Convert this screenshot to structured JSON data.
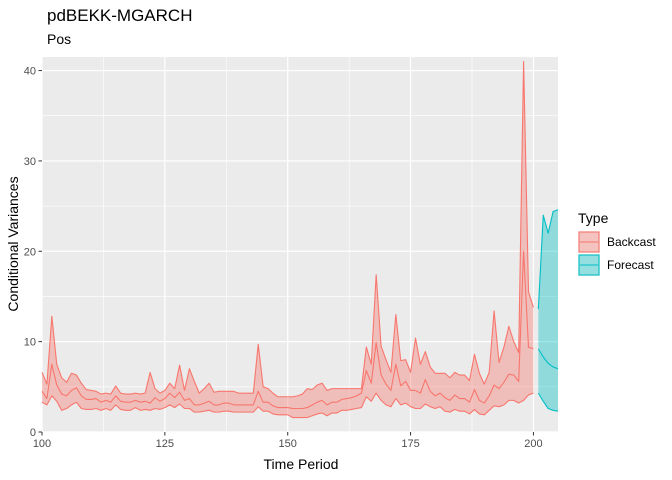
{
  "chart_data": {
    "type": "area",
    "title": "pdBEKK-MGARCH",
    "subtitle": "Pos",
    "xlabel": "Time Period",
    "ylabel": "Conditional Variances",
    "xlim": [
      100,
      205
    ],
    "ylim": [
      0,
      41.5
    ],
    "x_ticks": [
      100,
      125,
      150,
      175,
      200
    ],
    "y_ticks": [
      0,
      10,
      20,
      30,
      40
    ],
    "grid": true,
    "legend": {
      "title": "Type",
      "position": "right",
      "entries": [
        "Backcast",
        "Forecast"
      ]
    },
    "series": [
      {
        "name": "Backcast",
        "color": "#F8766D",
        "fill": "#F8766D",
        "x": [
          100,
          101,
          102,
          103,
          104,
          105,
          106,
          107,
          108,
          109,
          110,
          111,
          112,
          113,
          114,
          115,
          116,
          117,
          118,
          119,
          120,
          121,
          122,
          123,
          124,
          125,
          126,
          127,
          128,
          129,
          130,
          131,
          132,
          133,
          134,
          135,
          136,
          137,
          138,
          139,
          140,
          141,
          142,
          143,
          144,
          145,
          146,
          147,
          148,
          149,
          150,
          151,
          152,
          153,
          154,
          155,
          156,
          157,
          158,
          159,
          160,
          161,
          162,
          163,
          164,
          165,
          166,
          167,
          168,
          169,
          170,
          171,
          172,
          173,
          174,
          175,
          176,
          177,
          178,
          179,
          180,
          181,
          182,
          183,
          184,
          185,
          186,
          187,
          188,
          189,
          190,
          191,
          192,
          193,
          194,
          195,
          196,
          197,
          198,
          199,
          200
        ],
        "lower": [
          3.3,
          3.0,
          4.0,
          3.4,
          2.4,
          2.6,
          3.0,
          3.3,
          2.6,
          2.5,
          2.5,
          2.6,
          2.4,
          2.6,
          2.4,
          3.0,
          2.5,
          2.4,
          2.4,
          2.7,
          2.4,
          2.5,
          2.4,
          2.6,
          2.5,
          2.7,
          3.0,
          2.7,
          3.1,
          2.6,
          2.6,
          2.2,
          2.2,
          2.3,
          2.4,
          2.2,
          2.2,
          2.3,
          2.3,
          2.2,
          2.2,
          2.2,
          2.2,
          2.2,
          2.8,
          2.3,
          2.3,
          2.0,
          1.9,
          1.9,
          1.9,
          1.6,
          1.6,
          1.6,
          1.6,
          1.8,
          2.0,
          2.1,
          1.8,
          2.1,
          2.1,
          2.4,
          2.4,
          2.5,
          2.6,
          2.7,
          3.9,
          3.4,
          4.3,
          3.5,
          3.0,
          2.8,
          3.7,
          3.0,
          3.2,
          2.8,
          2.6,
          2.6,
          3.1,
          2.8,
          2.6,
          2.8,
          2.3,
          2.2,
          2.5,
          2.3,
          2.3,
          2.0,
          2.5,
          2.0,
          1.9,
          2.4,
          2.9,
          2.8,
          3.0,
          3.5,
          3.5,
          3.2,
          3.5,
          4.1,
          4.3
        ],
        "mean": [
          4.5,
          3.7,
          7.5,
          5.2,
          4.2,
          4.0,
          4.6,
          4.9,
          4.0,
          3.6,
          3.6,
          3.7,
          3.3,
          3.5,
          3.3,
          4.0,
          3.4,
          3.3,
          3.3,
          3.5,
          3.3,
          3.4,
          3.2,
          3.8,
          3.4,
          3.7,
          4.3,
          3.8,
          4.4,
          3.5,
          3.7,
          3.0,
          3.0,
          3.2,
          3.4,
          3.0,
          3.0,
          3.2,
          3.2,
          3.0,
          3.0,
          3.0,
          3.0,
          3.0,
          4.5,
          3.3,
          3.3,
          2.9,
          2.7,
          2.7,
          2.7,
          2.6,
          2.6,
          2.6,
          2.7,
          3.0,
          3.3,
          3.5,
          3.0,
          3.3,
          3.3,
          3.6,
          3.7,
          3.8,
          4.0,
          4.3,
          6.8,
          5.4,
          9.9,
          6.3,
          5.3,
          4.6,
          7.5,
          5.1,
          5.6,
          4.6,
          4.6,
          4.3,
          5.8,
          4.5,
          4.0,
          4.3,
          3.8,
          3.5,
          4.1,
          3.7,
          3.7,
          3.3,
          4.7,
          3.5,
          3.2,
          4.0,
          5.2,
          4.8,
          5.5,
          6.4,
          6.3,
          5.6,
          20.0,
          9.4,
          9.2
        ],
        "upper": [
          6.6,
          5.3,
          12.8,
          7.5,
          6.0,
          5.5,
          6.5,
          6.3,
          5.4,
          4.7,
          4.6,
          4.5,
          4.2,
          4.3,
          4.2,
          5.1,
          4.3,
          4.2,
          4.2,
          4.3,
          4.2,
          4.3,
          6.6,
          4.8,
          4.3,
          4.6,
          5.4,
          4.8,
          7.4,
          4.6,
          7.0,
          5.6,
          4.3,
          4.8,
          5.4,
          4.4,
          4.5,
          4.5,
          4.5,
          4.5,
          4.3,
          4.3,
          4.3,
          4.3,
          9.7,
          5.0,
          4.8,
          4.3,
          3.9,
          3.9,
          3.9,
          3.9,
          4.0,
          4.2,
          4.8,
          4.7,
          5.2,
          5.4,
          4.6,
          4.8,
          4.8,
          4.8,
          4.8,
          4.8,
          4.8,
          4.8,
          9.4,
          7.5,
          17.4,
          9.5,
          8.0,
          6.6,
          13.0,
          7.9,
          8.0,
          6.6,
          10.4,
          7.5,
          8.9,
          7.2,
          6.5,
          6.5,
          6.5,
          6.0,
          6.6,
          6.3,
          6.3,
          5.7,
          8.6,
          6.5,
          5.3,
          6.6,
          13.4,
          7.7,
          9.4,
          11.7,
          10.0,
          8.8,
          41.0,
          15.5,
          13.8
        ]
      },
      {
        "name": "Forecast",
        "color": "#00BFC4",
        "fill": "#00BFC4",
        "x": [
          201,
          202,
          203,
          204,
          205
        ],
        "lower": [
          4.3,
          3.4,
          2.6,
          2.4,
          2.3
        ],
        "mean": [
          9.2,
          8.3,
          7.6,
          7.2,
          7.0
        ],
        "upper": [
          13.6,
          24.0,
          22.0,
          24.4,
          24.6
        ]
      }
    ]
  }
}
